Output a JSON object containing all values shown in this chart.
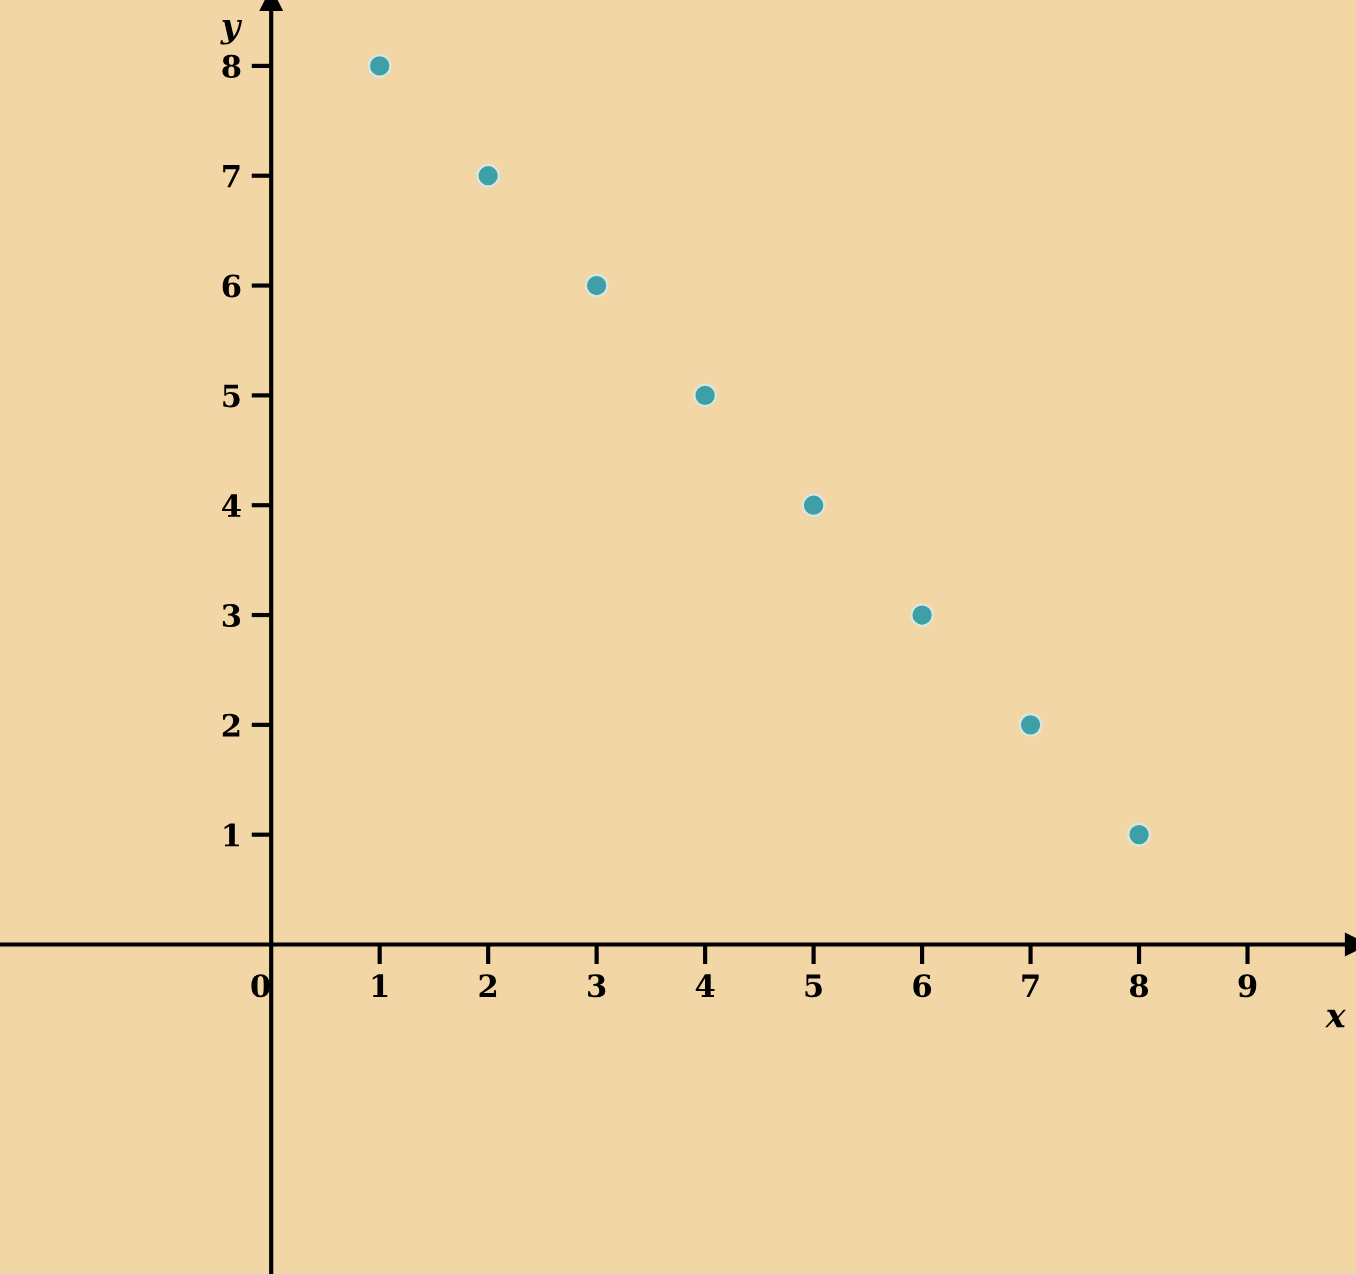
{
  "chart_data": {
    "type": "scatter",
    "xlabel": "x",
    "ylabel": "y",
    "x": [
      1,
      2,
      3,
      4,
      5,
      6,
      7,
      8
    ],
    "values": [
      8,
      7,
      6,
      5,
      4,
      3,
      2,
      1
    ],
    "color": "#3e9fa6",
    "xlim": [
      -2.5,
      10
    ],
    "ylim": [
      -3,
      8.6
    ],
    "xticks": [
      {
        "value": 0,
        "label": "0"
      },
      1,
      2,
      3,
      4,
      5,
      6,
      7,
      8,
      9
    ],
    "yticks": [
      1,
      2,
      3,
      4,
      5,
      6,
      7,
      8
    ],
    "grid": false,
    "legend": false,
    "marker": "circle"
  }
}
